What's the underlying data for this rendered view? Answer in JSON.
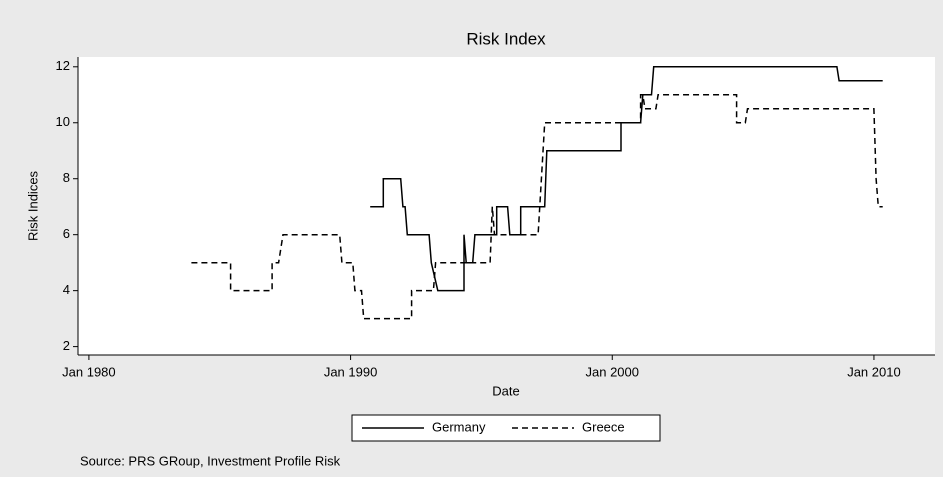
{
  "chart_data": {
    "type": "line",
    "title": "Risk Index",
    "xlabel": "Date",
    "ylabel": "Risk Indices",
    "note": "Source: PRS GRoup, Investment Profile Risk",
    "xlim": [
      "1979-08",
      "2012-05"
    ],
    "xticks": [
      {
        "value": "1980-01",
        "label": "Jan 1980"
      },
      {
        "value": "1990-01",
        "label": "Jan 1990"
      },
      {
        "value": "2000-01",
        "label": "Jan 2000"
      },
      {
        "value": "2010-01",
        "label": "Jan 2010"
      }
    ],
    "ylim": [
      1.7,
      12.35
    ],
    "yticks": [
      2,
      4,
      6,
      8,
      10,
      12
    ],
    "grid": false,
    "legend": "bottom",
    "series": [
      {
        "name": "Germany",
        "color": "#000000",
        "dash": "solid",
        "x": [
          "1990-10",
          "1991-04",
          "1991-04",
          "1991-12",
          "1992-01",
          "1992-02",
          "1992-03",
          "1993-01",
          "1993-02",
          "1993-05",
          "1994-05",
          "1994-05",
          "1994-06",
          "1994-09",
          "1994-10",
          "1995-08",
          "1995-08",
          "1996-01",
          "1996-02",
          "1996-07",
          "1996-07",
          "1997-06",
          "1997-07",
          "2000-05",
          "2000-05",
          "2001-02",
          "2001-03",
          "2001-07",
          "2001-08",
          "2008-08",
          "2008-09",
          "2010-05"
        ],
        "values": [
          7,
          7,
          8,
          8,
          7,
          7,
          6,
          6,
          5,
          4,
          4,
          6,
          5,
          5,
          6,
          6,
          7,
          7,
          6,
          6,
          7,
          7,
          9,
          9,
          10,
          10,
          11,
          11,
          12,
          12,
          11.5,
          11.5
        ]
      },
      {
        "name": "Greece",
        "color": "#000000",
        "dash": "dashed",
        "x": [
          "1983-12",
          "1985-06",
          "1985-06",
          "1987-01",
          "1987-01",
          "1987-04",
          "1987-06",
          "1989-08",
          "1989-09",
          "1990-02",
          "1990-03",
          "1990-06",
          "1990-07",
          "1992-05",
          "1992-05",
          "1993-03",
          "1993-04",
          "1995-05",
          "1995-06",
          "1995-07",
          "1997-03",
          "1997-06",
          "2001-02",
          "2001-02",
          "2001-03",
          "2001-04",
          "2001-09",
          "2001-10",
          "2004-10",
          "2004-10",
          "2005-02",
          "2005-03",
          "2010-01",
          "2010-02",
          "2010-03",
          "2010-05"
        ],
        "values": [
          5,
          5,
          4,
          4,
          5,
          5,
          6,
          6,
          5,
          5,
          4,
          4,
          3,
          3,
          4,
          4,
          5,
          5,
          7,
          6,
          6,
          10,
          10,
          11,
          11,
          10.5,
          10.5,
          11,
          11,
          10,
          10,
          10.5,
          10.5,
          8,
          7,
          7
        ]
      }
    ]
  }
}
